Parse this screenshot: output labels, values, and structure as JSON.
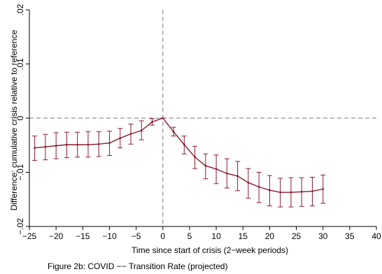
{
  "chart_data": {
    "type": "line",
    "xlabel": "Time since start of crisis (2−week periods)",
    "ylabel": "Difference: cumulative crisis relative to reference",
    "xlim": [
      -25,
      40
    ],
    "ylim": [
      -0.02,
      0.02
    ],
    "x_ticks": [
      -25,
      -20,
      -15,
      -10,
      -5,
      0,
      5,
      10,
      15,
      20,
      25,
      30,
      35,
      40
    ],
    "x_tick_labels": [
      "−25",
      "−20",
      "−15",
      "−10",
      "−5",
      "0",
      "5",
      "10",
      "15",
      "20",
      "25",
      "30",
      "35",
      "40"
    ],
    "y_ticks": [
      -0.02,
      -0.01,
      0,
      0.01,
      0.02
    ],
    "y_tick_labels": [
      "−.02",
      "−.01",
      "0",
      ".01",
      ".02"
    ],
    "reference_lines": {
      "x": 0,
      "y": 0
    },
    "line_color": "#8b1a2e",
    "series": [
      {
        "x": [
          -24,
          -22,
          -20,
          -18,
          -16,
          -14,
          -12,
          -10,
          -8,
          -6,
          -4,
          -2,
          0,
          2,
          4,
          6,
          8,
          10,
          12,
          14,
          16,
          18,
          20,
          22,
          24,
          26,
          28,
          30
        ],
        "y": [
          -0.0055,
          -0.0053,
          -0.0051,
          -0.0049,
          -0.0049,
          -0.0049,
          -0.0048,
          -0.0046,
          -0.0037,
          -0.0029,
          -0.0023,
          -0.0007,
          0.0,
          -0.0025,
          -0.0049,
          -0.0072,
          -0.0088,
          -0.0094,
          -0.0102,
          -0.0107,
          -0.0119,
          -0.0127,
          -0.0133,
          -0.0137,
          -0.0137,
          -0.0136,
          -0.0135,
          -0.0131
        ],
        "ci_low": [
          -0.0078,
          -0.0077,
          -0.0075,
          -0.0073,
          -0.0072,
          -0.0072,
          -0.0071,
          -0.0069,
          -0.0055,
          -0.0048,
          -0.004,
          -0.0013,
          0.0,
          -0.0033,
          -0.0066,
          -0.0093,
          -0.0112,
          -0.0121,
          -0.0129,
          -0.0134,
          -0.0148,
          -0.0156,
          -0.0162,
          -0.0164,
          -0.0164,
          -0.0163,
          -0.0162,
          -0.0157
        ],
        "ci_high": [
          -0.0033,
          -0.003,
          -0.0027,
          -0.0026,
          -0.0026,
          -0.0025,
          -0.0025,
          -0.0024,
          -0.0019,
          -0.0011,
          -0.0005,
          -0.0001,
          0.0,
          -0.0017,
          -0.0033,
          -0.0052,
          -0.0066,
          -0.0068,
          -0.0075,
          -0.008,
          -0.0093,
          -0.01,
          -0.0106,
          -0.0111,
          -0.011,
          -0.011,
          -0.0109,
          -0.0105
        ]
      }
    ]
  },
  "caption": "Figure 2b: COVID −− Transition Rate (projected)"
}
